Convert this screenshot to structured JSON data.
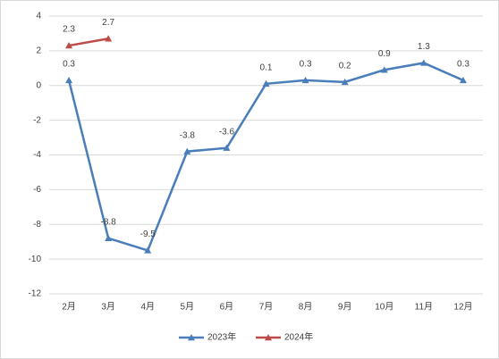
{
  "chart_data": {
    "type": "line",
    "categories": [
      "2月",
      "3月",
      "4月",
      "5月",
      "6月",
      "7月",
      "8月",
      "9月",
      "10月",
      "11月",
      "12月"
    ],
    "series": [
      {
        "name": "2023年",
        "color": "#4a7ebb",
        "values": [
          0.3,
          -8.8,
          -9.5,
          -3.8,
          -3.6,
          0.1,
          0.3,
          0.2,
          0.9,
          1.3,
          0.3
        ]
      },
      {
        "name": "2024年",
        "color": "#be4b48",
        "values": [
          2.3,
          2.7,
          null,
          null,
          null,
          null,
          null,
          null,
          null,
          null,
          null
        ]
      }
    ],
    "ylim": [
      -12,
      4
    ],
    "yticks": [
      -12,
      -10,
      -8,
      -6,
      -4,
      -2,
      0,
      2,
      4
    ],
    "grid": true,
    "legend": "bottom"
  }
}
